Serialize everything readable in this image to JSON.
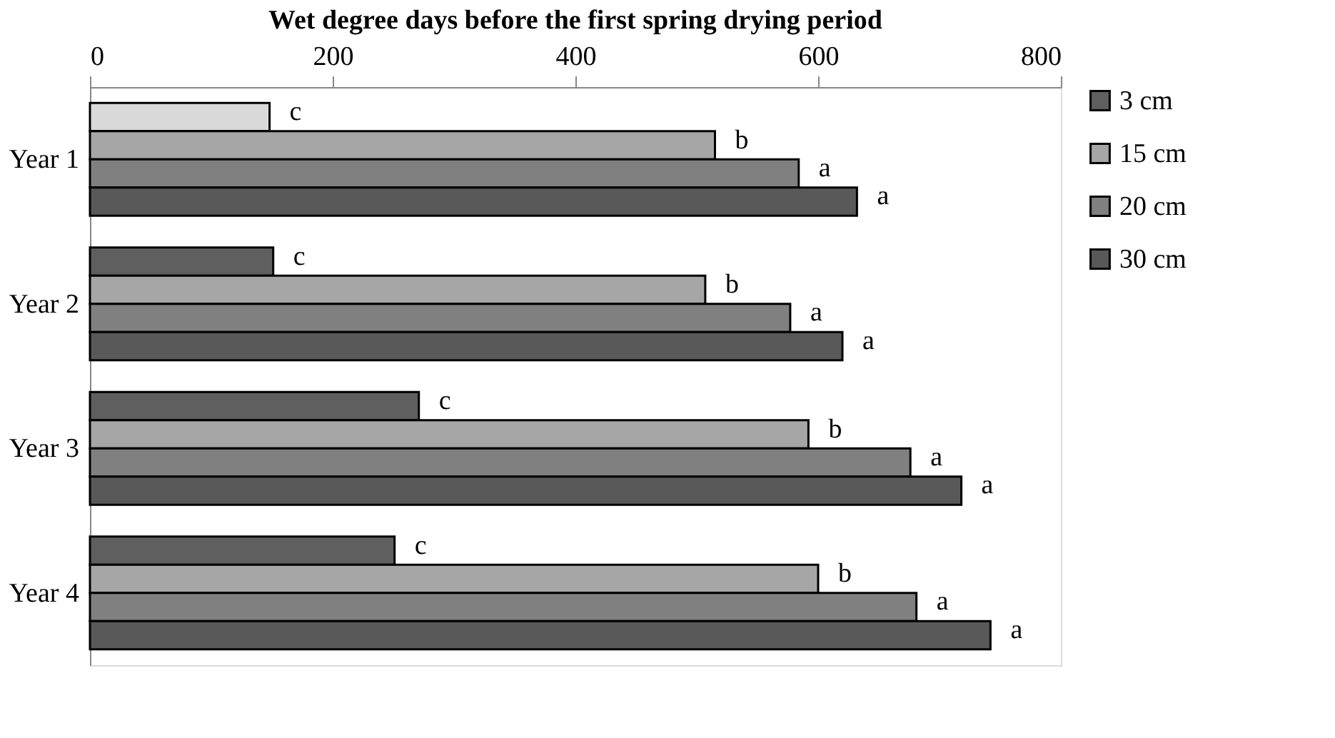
{
  "chart_data": {
    "type": "bar",
    "orientation": "horizontal",
    "title": "Wet degree days before the first spring drying period",
    "categories": [
      "Year 1",
      "Year 2",
      "Year 3",
      "Year 4"
    ],
    "series": [
      {
        "name": "3 cm",
        "color": "#5f5f5f",
        "colors": [
          "#d9d9d9",
          "#5f5f5f",
          "#5f5f5f",
          "#5f5f5f"
        ],
        "values": [
          148,
          151,
          271,
          251
        ],
        "value_labels": [
          "c",
          "c",
          "c",
          "c"
        ]
      },
      {
        "name": "15 cm",
        "color": "#a6a6a6",
        "values": [
          515,
          507,
          592,
          600
        ],
        "value_labels": [
          "b",
          "b",
          "b",
          "b"
        ]
      },
      {
        "name": "20 cm",
        "color": "#808080",
        "values": [
          584,
          577,
          676,
          681
        ],
        "value_labels": [
          "a",
          "a",
          "a",
          "a"
        ]
      },
      {
        "name": "30 cm",
        "color": "#595959",
        "values": [
          632,
          620,
          718,
          742
        ],
        "value_labels": [
          "a",
          "a",
          "a",
          "a"
        ]
      }
    ],
    "xlim": [
      0,
      800
    ],
    "xticks": [
      0,
      200,
      400,
      600,
      800
    ],
    "grid": false,
    "legend": "right"
  }
}
